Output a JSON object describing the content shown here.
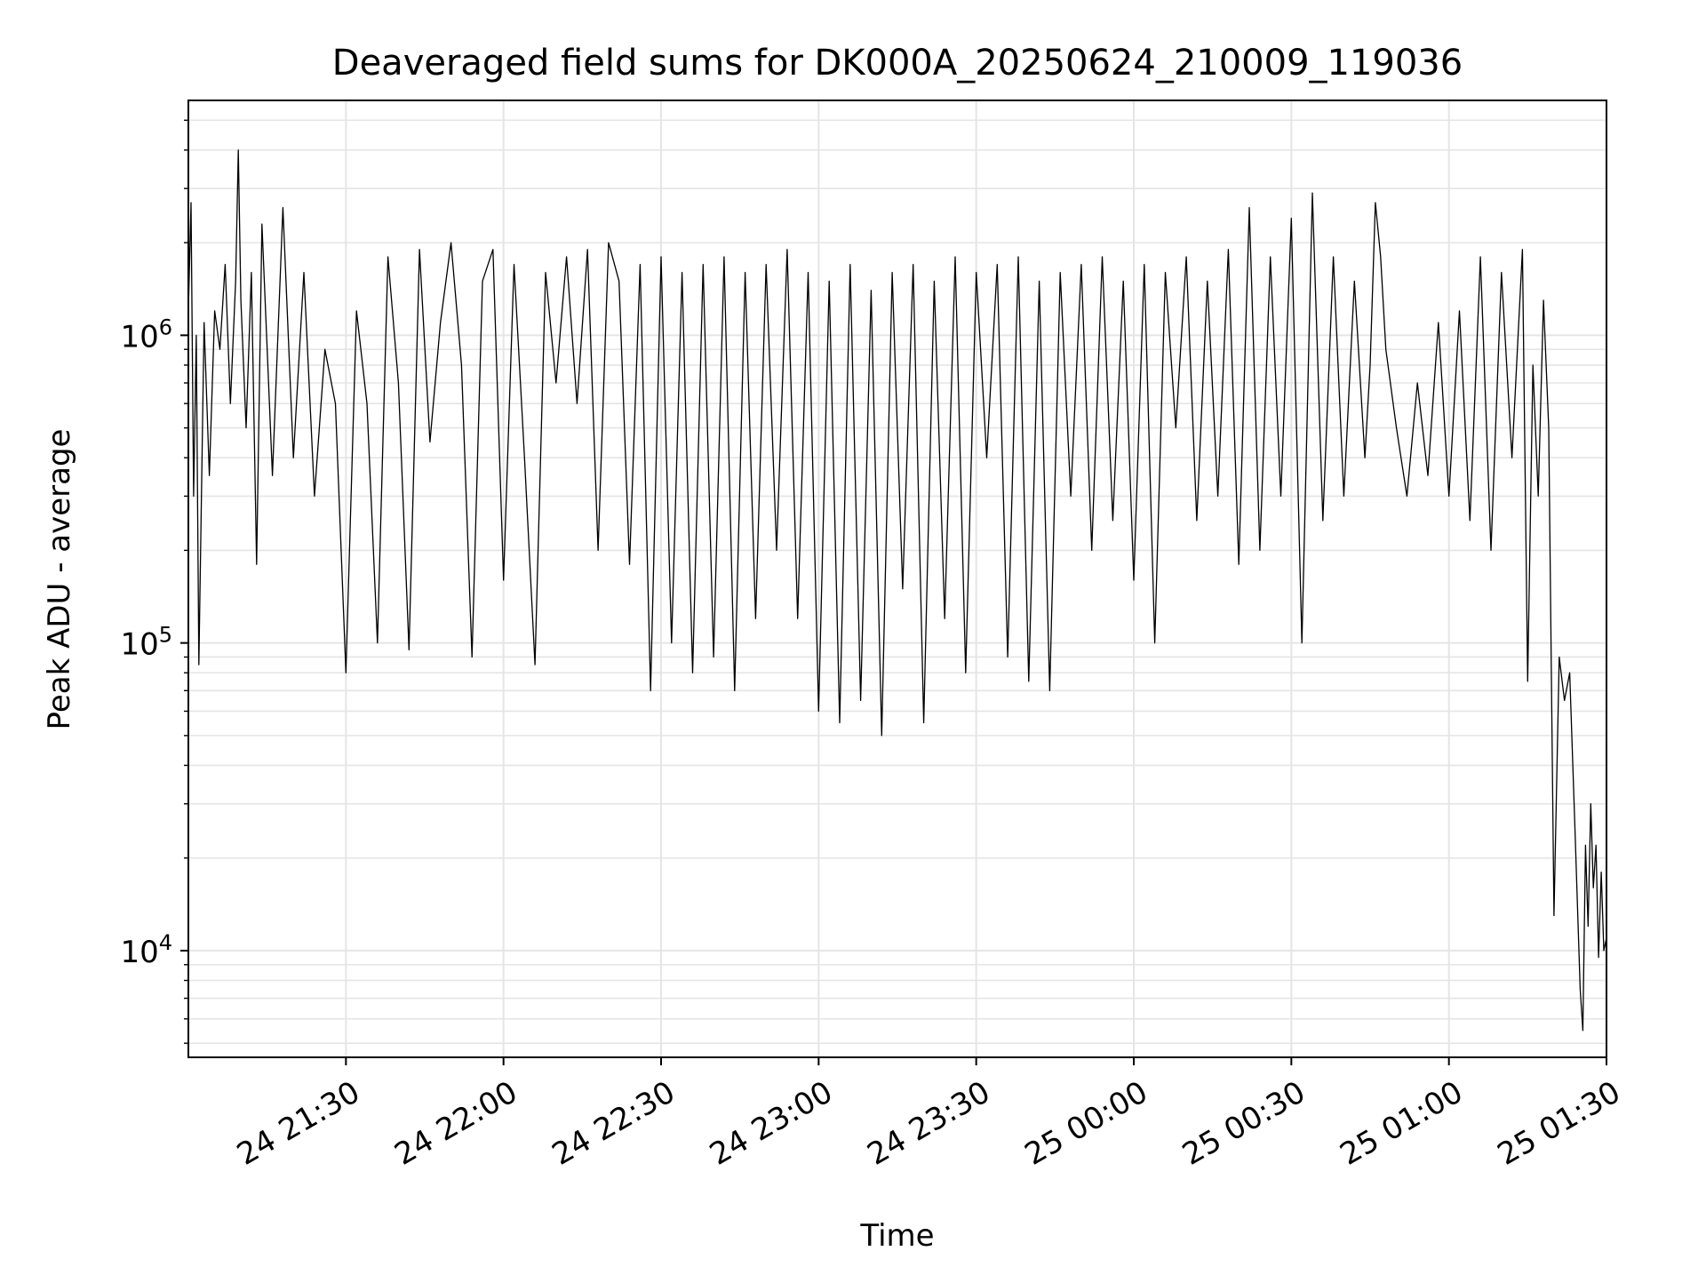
{
  "chart_data": {
    "type": "line",
    "title": "Deaveraged field sums for DK000A_20250624_210009_119036",
    "xlabel": "Time",
    "ylabel": "Peak ADU - average",
    "yscale": "log",
    "ylim": [
      4500,
      5800000
    ],
    "xlim": [
      "2025-06-24 21:00:00",
      "2025-06-25 01:30:00"
    ],
    "grid": true,
    "legend": "none",
    "line_color": "#000000",
    "grid_color": "#e5e5e5",
    "x_ticks": [
      "2025-06-24 21:30",
      "2025-06-24 22:00",
      "2025-06-24 22:30",
      "2025-06-24 23:00",
      "2025-06-24 23:30",
      "2025-06-25 00:00",
      "2025-06-25 00:30",
      "2025-06-25 01:00",
      "2025-06-25 01:30"
    ],
    "x_tick_labels": [
      "24 21:30",
      "24 22:00",
      "24 22:30",
      "24 23:00",
      "24 23:30",
      "25 00:00",
      "25 00:30",
      "25 01:00",
      "25 01:30"
    ],
    "y_ticks": [
      10000,
      100000,
      1000000
    ],
    "y_tick_labels": [
      {
        "base": "10",
        "exp": "4"
      },
      {
        "base": "10",
        "exp": "5"
      },
      {
        "base": "10",
        "exp": "6"
      }
    ],
    "series": [
      {
        "x": [
          "2025-06-24 21:00:00",
          "2025-06-24 21:00:30",
          "2025-06-24 21:01:00",
          "2025-06-24 21:01:30",
          "2025-06-24 21:02:00",
          "2025-06-24 21:03:00",
          "2025-06-24 21:04:00",
          "2025-06-24 21:05:00",
          "2025-06-24 21:06:00",
          "2025-06-24 21:07:00",
          "2025-06-24 21:08:00",
          "2025-06-24 21:09:00",
          "2025-06-24 21:09:30",
          "2025-06-24 21:10:00",
          "2025-06-24 21:11:00",
          "2025-06-24 21:12:00",
          "2025-06-24 21:13:00",
          "2025-06-24 21:14:00",
          "2025-06-24 21:16:00",
          "2025-06-24 21:18:00",
          "2025-06-24 21:20:00",
          "2025-06-24 21:22:00",
          "2025-06-24 21:24:00",
          "2025-06-24 21:26:00",
          "2025-06-24 21:28:00",
          "2025-06-24 21:30:00",
          "2025-06-24 21:32:00",
          "2025-06-24 21:34:00",
          "2025-06-24 21:36:00",
          "2025-06-24 21:38:00",
          "2025-06-24 21:40:00",
          "2025-06-24 21:42:00",
          "2025-06-24 21:44:00",
          "2025-06-24 21:46:00",
          "2025-06-24 21:48:00",
          "2025-06-24 21:50:00",
          "2025-06-24 21:52:00",
          "2025-06-24 21:54:00",
          "2025-06-24 21:56:00",
          "2025-06-24 21:58:00",
          "2025-06-24 22:00:00",
          "2025-06-24 22:02:00",
          "2025-06-24 22:04:00",
          "2025-06-24 22:06:00",
          "2025-06-24 22:08:00",
          "2025-06-24 22:10:00",
          "2025-06-24 22:12:00",
          "2025-06-24 22:14:00",
          "2025-06-24 22:16:00",
          "2025-06-24 22:18:00",
          "2025-06-24 22:20:00",
          "2025-06-24 22:22:00",
          "2025-06-24 22:24:00",
          "2025-06-24 22:26:00",
          "2025-06-24 22:28:00",
          "2025-06-24 22:30:00",
          "2025-06-24 22:32:00",
          "2025-06-24 22:34:00",
          "2025-06-24 22:36:00",
          "2025-06-24 22:38:00",
          "2025-06-24 22:40:00",
          "2025-06-24 22:42:00",
          "2025-06-24 22:44:00",
          "2025-06-24 22:46:00",
          "2025-06-24 22:48:00",
          "2025-06-24 22:50:00",
          "2025-06-24 22:52:00",
          "2025-06-24 22:54:00",
          "2025-06-24 22:56:00",
          "2025-06-24 22:58:00",
          "2025-06-24 23:00:00",
          "2025-06-24 23:02:00",
          "2025-06-24 23:04:00",
          "2025-06-24 23:06:00",
          "2025-06-24 23:08:00",
          "2025-06-24 23:10:00",
          "2025-06-24 23:12:00",
          "2025-06-24 23:14:00",
          "2025-06-24 23:16:00",
          "2025-06-24 23:18:00",
          "2025-06-24 23:20:00",
          "2025-06-24 23:22:00",
          "2025-06-24 23:24:00",
          "2025-06-24 23:26:00",
          "2025-06-24 23:28:00",
          "2025-06-24 23:30:00",
          "2025-06-24 23:32:00",
          "2025-06-24 23:34:00",
          "2025-06-24 23:36:00",
          "2025-06-24 23:38:00",
          "2025-06-24 23:40:00",
          "2025-06-24 23:42:00",
          "2025-06-24 23:44:00",
          "2025-06-24 23:46:00",
          "2025-06-24 23:48:00",
          "2025-06-24 23:50:00",
          "2025-06-24 23:52:00",
          "2025-06-24 23:54:00",
          "2025-06-24 23:56:00",
          "2025-06-24 23:58:00",
          "2025-06-25 00:00:00",
          "2025-06-25 00:02:00",
          "2025-06-25 00:04:00",
          "2025-06-25 00:06:00",
          "2025-06-25 00:08:00",
          "2025-06-25 00:10:00",
          "2025-06-25 00:12:00",
          "2025-06-25 00:14:00",
          "2025-06-25 00:16:00",
          "2025-06-25 00:18:00",
          "2025-06-25 00:20:00",
          "2025-06-25 00:22:00",
          "2025-06-25 00:24:00",
          "2025-06-25 00:26:00",
          "2025-06-25 00:28:00",
          "2025-06-25 00:30:00",
          "2025-06-25 00:32:00",
          "2025-06-25 00:34:00",
          "2025-06-25 00:36:00",
          "2025-06-25 00:38:00",
          "2025-06-25 00:40:00",
          "2025-06-25 00:42:00",
          "2025-06-25 00:44:00",
          "2025-06-25 00:45:00",
          "2025-06-25 00:46:00",
          "2025-06-25 00:47:00",
          "2025-06-25 00:48:00",
          "2025-06-25 00:50:00",
          "2025-06-25 00:52:00",
          "2025-06-25 00:54:00",
          "2025-06-25 00:56:00",
          "2025-06-25 00:58:00",
          "2025-06-25 01:00:00",
          "2025-06-25 01:02:00",
          "2025-06-25 01:04:00",
          "2025-06-25 01:06:00",
          "2025-06-25 01:08:00",
          "2025-06-25 01:10:00",
          "2025-06-25 01:12:00",
          "2025-06-25 01:14:00",
          "2025-06-25 01:15:00",
          "2025-06-25 01:16:00",
          "2025-06-25 01:17:00",
          "2025-06-25 01:18:00",
          "2025-06-25 01:19:00",
          "2025-06-25 01:20:00",
          "2025-06-25 01:21:00",
          "2025-06-25 01:22:00",
          "2025-06-25 01:23:00",
          "2025-06-25 01:24:00",
          "2025-06-25 01:25:00",
          "2025-06-25 01:25:30",
          "2025-06-25 01:26:00",
          "2025-06-25 01:26:30",
          "2025-06-25 01:27:00",
          "2025-06-25 01:27:30",
          "2025-06-25 01:28:00",
          "2025-06-25 01:28:30",
          "2025-06-25 01:29:00",
          "2025-06-25 01:29:30",
          "2025-06-25 01:30:00"
        ],
        "y": [
          1200000,
          2700000,
          300000,
          1000000,
          85000,
          1100000,
          350000,
          1200000,
          900000,
          1700000,
          600000,
          1500000,
          4000000,
          1300000,
          500000,
          1600000,
          180000,
          2300000,
          350000,
          2600000,
          400000,
          1600000,
          300000,
          900000,
          600000,
          80000,
          1200000,
          600000,
          100000,
          1800000,
          700000,
          95000,
          1900000,
          450000,
          1100000,
          2000000,
          800000,
          90000,
          1500000,
          1900000,
          160000,
          1700000,
          400000,
          85000,
          1600000,
          700000,
          1800000,
          600000,
          1900000,
          200000,
          2000000,
          1500000,
          180000,
          1700000,
          70000,
          1800000,
          100000,
          1600000,
          80000,
          1700000,
          90000,
          1800000,
          70000,
          1600000,
          120000,
          1700000,
          200000,
          1900000,
          120000,
          1600000,
          60000,
          1500000,
          55000,
          1700000,
          65000,
          1400000,
          50000,
          1600000,
          150000,
          1700000,
          55000,
          1500000,
          120000,
          1800000,
          80000,
          1600000,
          400000,
          1700000,
          90000,
          1800000,
          75000,
          1500000,
          70000,
          1600000,
          300000,
          1700000,
          200000,
          1800000,
          250000,
          1500000,
          160000,
          1700000,
          100000,
          1600000,
          500000,
          1800000,
          250000,
          1500000,
          300000,
          1900000,
          180000,
          2600000,
          200000,
          1800000,
          300000,
          2400000,
          100000,
          2900000,
          250000,
          1800000,
          300000,
          1500000,
          400000,
          800000,
          2700000,
          1800000,
          900000,
          500000,
          300000,
          700000,
          350000,
          1100000,
          300000,
          1200000,
          250000,
          1800000,
          200000,
          1600000,
          400000,
          1900000,
          75000,
          800000,
          300000,
          1300000,
          500000,
          13000,
          90000,
          65000,
          80000,
          25000,
          7500,
          5500,
          22000,
          12000,
          30000,
          16000,
          22000,
          9500,
          18000,
          10000,
          11000
        ]
      }
    ]
  }
}
